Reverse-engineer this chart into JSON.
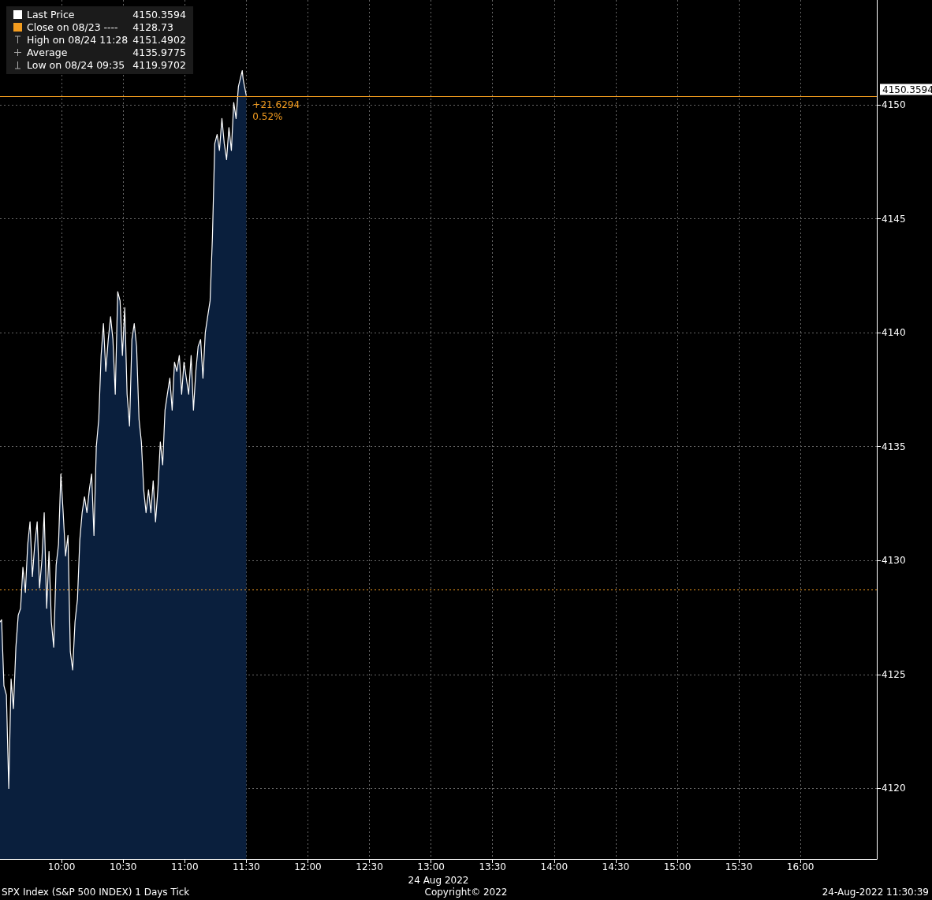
{
  "chart_data": {
    "type": "area",
    "xlabel": "24 Aug 2022",
    "series": [
      {
        "name": "Last Price",
        "color": "#ffffff",
        "x": [
          9.5,
          9.513,
          9.532,
          9.552,
          9.571,
          9.59,
          9.609,
          9.629,
          9.648,
          9.667,
          9.686,
          9.706,
          9.725,
          9.744,
          9.763,
          9.782,
          9.802,
          9.821,
          9.84,
          9.859,
          9.879,
          9.898,
          9.917,
          9.936,
          9.956,
          9.975,
          9.994,
          10.013,
          10.032,
          10.052,
          10.071,
          10.09,
          10.109,
          10.129,
          10.148,
          10.167,
          10.186,
          10.206,
          10.225,
          10.244,
          10.263,
          10.282,
          10.302,
          10.321,
          10.34,
          10.359,
          10.379,
          10.398,
          10.417,
          10.436,
          10.456,
          10.475,
          10.494,
          10.513,
          10.532,
          10.552,
          10.571,
          10.59,
          10.609,
          10.629,
          10.648,
          10.667,
          10.686,
          10.706,
          10.725,
          10.744,
          10.763,
          10.782,
          10.802,
          10.821,
          10.84,
          10.859,
          10.879,
          10.898,
          10.917,
          10.936,
          10.956,
          10.975,
          10.994,
          11.013,
          11.032,
          11.052,
          11.071,
          11.09,
          11.109,
          11.129,
          11.148,
          11.167,
          11.186,
          11.206,
          11.225,
          11.244,
          11.263,
          11.282,
          11.302,
          11.321,
          11.34,
          11.359,
          11.379,
          11.398,
          11.417,
          11.436,
          11.467,
          11.475,
          11.5
        ],
        "values": [
          4127.3,
          4127.4,
          4124.5,
          4124.1,
          4120.0,
          4124.8,
          4123.5,
          4126.2,
          4127.6,
          4127.9,
          4129.7,
          4128.6,
          4130.7,
          4131.7,
          4129.3,
          4130.7,
          4131.7,
          4128.8,
          4130.0,
          4132.1,
          4127.9,
          4130.4,
          4127.3,
          4126.2,
          4129.8,
          4130.7,
          4133.8,
          4132.1,
          4130.2,
          4131.1,
          4126.0,
          4125.2,
          4127.3,
          4128.3,
          4130.9,
          4132.1,
          4132.8,
          4132.1,
          4133.1,
          4133.8,
          4131.1,
          4135.0,
          4136.2,
          4139.0,
          4140.4,
          4138.3,
          4139.7,
          4140.7,
          4139.7,
          4137.3,
          4141.8,
          4141.4,
          4139.0,
          4141.1,
          4137.3,
          4135.9,
          4139.7,
          4140.4,
          4139.4,
          4136.2,
          4135.2,
          4133.1,
          4132.1,
          4133.1,
          4132.1,
          4133.5,
          4131.7,
          4133.1,
          4135.2,
          4134.2,
          4136.6,
          4137.3,
          4138.0,
          4136.6,
          4138.7,
          4138.3,
          4139.0,
          4137.3,
          4138.7,
          4138.0,
          4137.3,
          4139.0,
          4136.6,
          4138.3,
          4139.4,
          4139.7,
          4138.0,
          4140.0,
          4140.7,
          4141.4,
          4144.2,
          4148.3,
          4148.7,
          4148.0,
          4149.4,
          4148.3,
          4147.6,
          4149.0,
          4148.0,
          4150.1,
          4149.4,
          4150.8,
          4151.5,
          4151.1,
          4150.4
        ]
      }
    ],
    "xlim": [
      9.5,
      16.62
    ],
    "xticks": [
      {
        "value": 10,
        "label": "10:00"
      },
      {
        "value": 10.5,
        "label": "10:30"
      },
      {
        "value": 11,
        "label": "11:00"
      },
      {
        "value": 11.5,
        "label": "11:30"
      },
      {
        "value": 12,
        "label": "12:00"
      },
      {
        "value": 12.5,
        "label": "12:30"
      },
      {
        "value": 13,
        "label": "13:00"
      },
      {
        "value": 13.5,
        "label": "13:30"
      },
      {
        "value": 14,
        "label": "14:00"
      },
      {
        "value": 14.5,
        "label": "14:30"
      },
      {
        "value": 15,
        "label": "15:00"
      },
      {
        "value": 15.5,
        "label": "15:30"
      },
      {
        "value": 16,
        "label": "16:00"
      }
    ],
    "ylim": [
      4116.9,
      4154.6
    ],
    "yticks": [
      4120,
      4125,
      4130,
      4135,
      4140,
      4145,
      4150
    ],
    "grid": true,
    "legend": "top left",
    "ref_lines": [
      {
        "axis": "y",
        "value": 4128.73,
        "color": "#f39c1f",
        "line_style": "dotted"
      },
      {
        "axis": "y",
        "value": 4150.3594,
        "label": "4150.3594",
        "color": "#f39c1f",
        "line_style": "solid"
      }
    ],
    "annotations": [
      "4150.3594",
      "Close on 08/23 ---- 4128.73",
      "High on 08/24 11:28 4151.4902",
      "Average 4135.9775",
      "Low on 08/24 09:35 4119.9702",
      {
        "text": "+21.6294",
        "x": 11.5,
        "y": 4150.3594
      },
      {
        "text": "0.52%",
        "x": 11.5,
        "y": 4150.3594
      },
      "SPX Index (S&P 500 INDEX) 1 Days  Tick",
      "Copyright© 2022",
      "24-Aug-2022 11:30:39"
    ]
  }
}
